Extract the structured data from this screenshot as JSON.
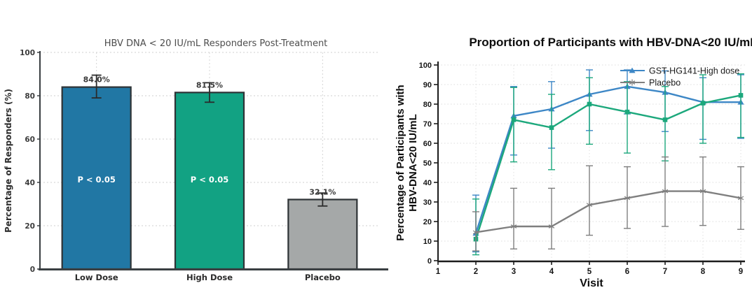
{
  "page": {
    "background": "#ffffff"
  },
  "chart_data": [
    {
      "type": "bar",
      "title": "HBV DNA < 20 IU/mL Responders Post-Treatment",
      "ylabel": "Percentage of Responders (%)",
      "xlabel": "",
      "categories": [
        "Low Dose",
        "High Dose",
        "Placebo"
      ],
      "values": [
        84.0,
        81.5,
        32.1
      ],
      "value_labels": [
        "84.0%",
        "81.5%",
        "32.1%"
      ],
      "error_minus": [
        5.0,
        4.5,
        3.0
      ],
      "error_plus": [
        5.5,
        4.5,
        3.0
      ],
      "bar_annotations": [
        "P < 0.05",
        "P < 0.05",
        ""
      ],
      "bar_annotation_y": 40,
      "bar_colors": [
        "#2177a4",
        "#12a283",
        "#a5a8a8"
      ],
      "bar_edge_color": "#2e3336",
      "error_color": "#2b2b2b",
      "title_color": "#4d4d4d",
      "tick_color": "#3c3c3c",
      "annotation_text_color": "#ffffff",
      "yticks": [
        0,
        20,
        40,
        60,
        80,
        100
      ],
      "ylim": [
        0,
        100
      ],
      "grid": true
    },
    {
      "type": "line",
      "title": "Proportion of Participants with HBV-DNA<20 IU/mL",
      "ylabel_lines": [
        "Percentage of Participants with",
        "HBV-DNA<20 IU/mL"
      ],
      "xlabel": "Visit",
      "x": [
        2,
        3,
        4,
        5,
        6,
        7,
        8,
        9
      ],
      "xticks": [
        1,
        2,
        3,
        4,
        5,
        6,
        7,
        8,
        9
      ],
      "yticks": [
        0,
        10,
        20,
        30,
        40,
        50,
        60,
        70,
        80,
        90,
        100
      ],
      "xlim": [
        1,
        9
      ],
      "ylim": [
        0,
        100
      ],
      "grid": true,
      "legend_position": "top-right",
      "series": [
        {
          "id": "gst-hg141-high-dose",
          "label": "GST-HG141-High dose",
          "in_legend": true,
          "color": "#3d87c6",
          "marker": "triangle",
          "values": [
            14,
            74,
            77.5,
            85,
            89,
            86,
            81,
            81
          ],
          "error_low": [
            4.5,
            54,
            57.5,
            66.5,
            75,
            66,
            62,
            62.5
          ],
          "error_high": [
            33.5,
            89,
            91.5,
            97.5,
            97.5,
            97,
            93.5,
            95
          ]
        },
        {
          "id": "green-series",
          "label": "",
          "in_legend": false,
          "color": "#1ca87c",
          "marker": "square",
          "values": [
            11,
            72,
            68,
            80,
            76,
            72,
            80.5,
            84.5
          ],
          "error_low": [
            3,
            50.5,
            46.5,
            59.5,
            55,
            51,
            60,
            63
          ],
          "error_high": [
            31.5,
            88.5,
            85,
            93.5,
            91.5,
            89,
            95,
            95.5
          ]
        },
        {
          "id": "placebo",
          "label": "Placebo",
          "in_legend": true,
          "color": "#7f7f7f",
          "marker": "star",
          "values": [
            14.5,
            17.5,
            17.5,
            28.5,
            32,
            35.5,
            35.5,
            32
          ],
          "error_low": [
            5,
            6,
            6,
            13,
            16.5,
            17.5,
            18,
            16
          ],
          "error_high": [
            25,
            37,
            37,
            48.5,
            48,
            53,
            53,
            48
          ]
        }
      ],
      "text_color": "#151515"
    }
  ]
}
